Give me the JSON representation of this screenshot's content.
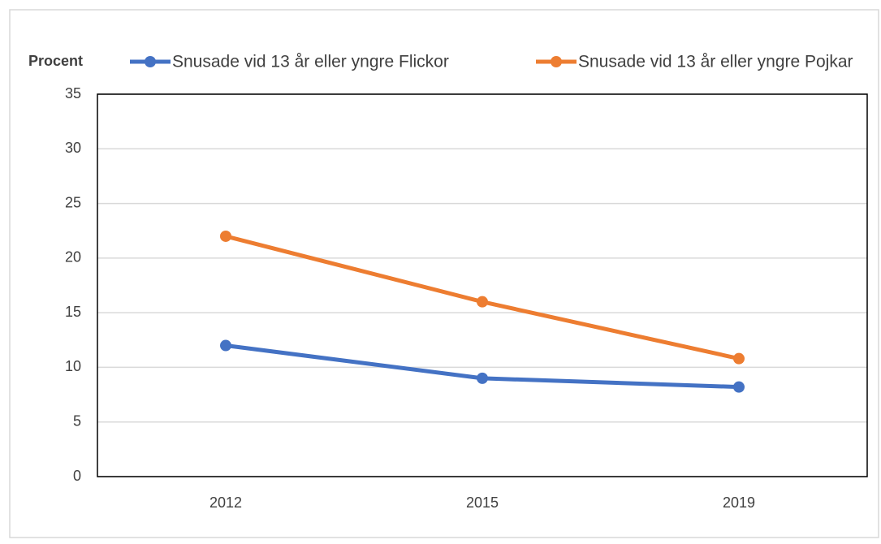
{
  "chart_data": {
    "type": "line",
    "y_axis_label": "Procent",
    "categories": [
      "2012",
      "2015",
      "2019"
    ],
    "series": [
      {
        "name": "Snusade vid 13 år eller yngre Flickor",
        "color": "#4472c4",
        "values": [
          12,
          9,
          8.2
        ]
      },
      {
        "name": "Snusade vid 13 år eller yngre Pojkar",
        "color": "#ed7d31",
        "values": [
          22,
          16,
          10.8
        ]
      }
    ],
    "ylim": [
      0,
      35
    ],
    "yticks": [
      0,
      5,
      10,
      15,
      20,
      25,
      30,
      35
    ],
    "grid": true,
    "legend": "top"
  }
}
